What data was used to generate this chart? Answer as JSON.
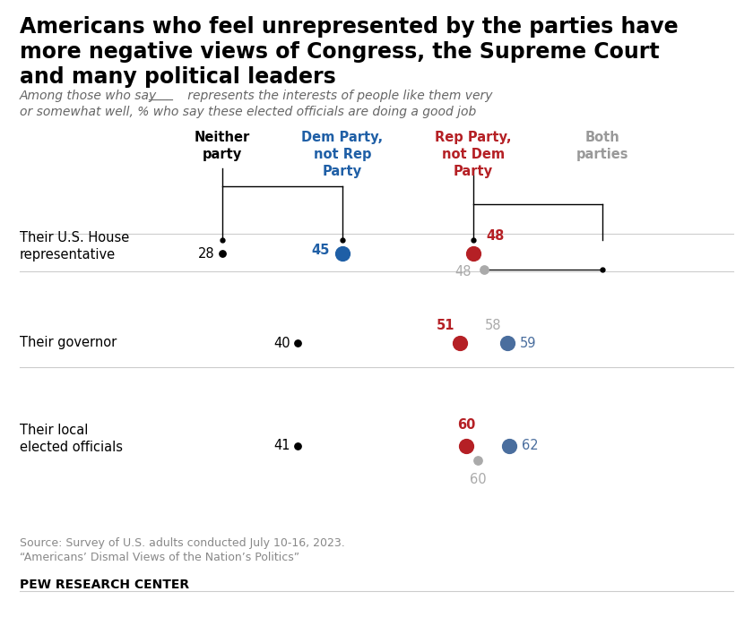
{
  "title_line1": "Americans who feel unrepresented by the parties have",
  "title_line2": "more negative views of Congress, the Supreme Court",
  "title_line3": "and many political leaders",
  "subtitle": "Among those who say      represents the interests of people like them very\nor somewhat well, % who say these elected officials are doing a good job",
  "col_labels": [
    "Neither\nparty",
    "Dem Party,\nnot Rep\nParty",
    "Rep Party,\nnot Dem\nParty",
    "Both\nparties"
  ],
  "col_colors": [
    "#000000",
    "#1f5fa6",
    "#b52025",
    "#999999"
  ],
  "neither_color": "#000000",
  "dem_color": "#1f5fa6",
  "rep_color": "#b52025",
  "both_gray_color": "#aaaaaa",
  "both_blue_color": "#4a6e9e",
  "house_neither": 28,
  "house_dem": 45,
  "house_rep": 48,
  "house_both": 48,
  "gov_neither": 40,
  "gov_rep": 51,
  "gov_both_gray": 58,
  "gov_both_blue": 59,
  "local_neither": 41,
  "local_rep": 60,
  "local_both_gray": 60,
  "local_both_blue": 62,
  "source_line1": "Source: Survey of U.S. adults conducted July 10-16, 2023.",
  "source_line2": "“Americans’ Dismal Views of the Nation’s Politics”",
  "branding": "PEW RESEARCH CENTER"
}
